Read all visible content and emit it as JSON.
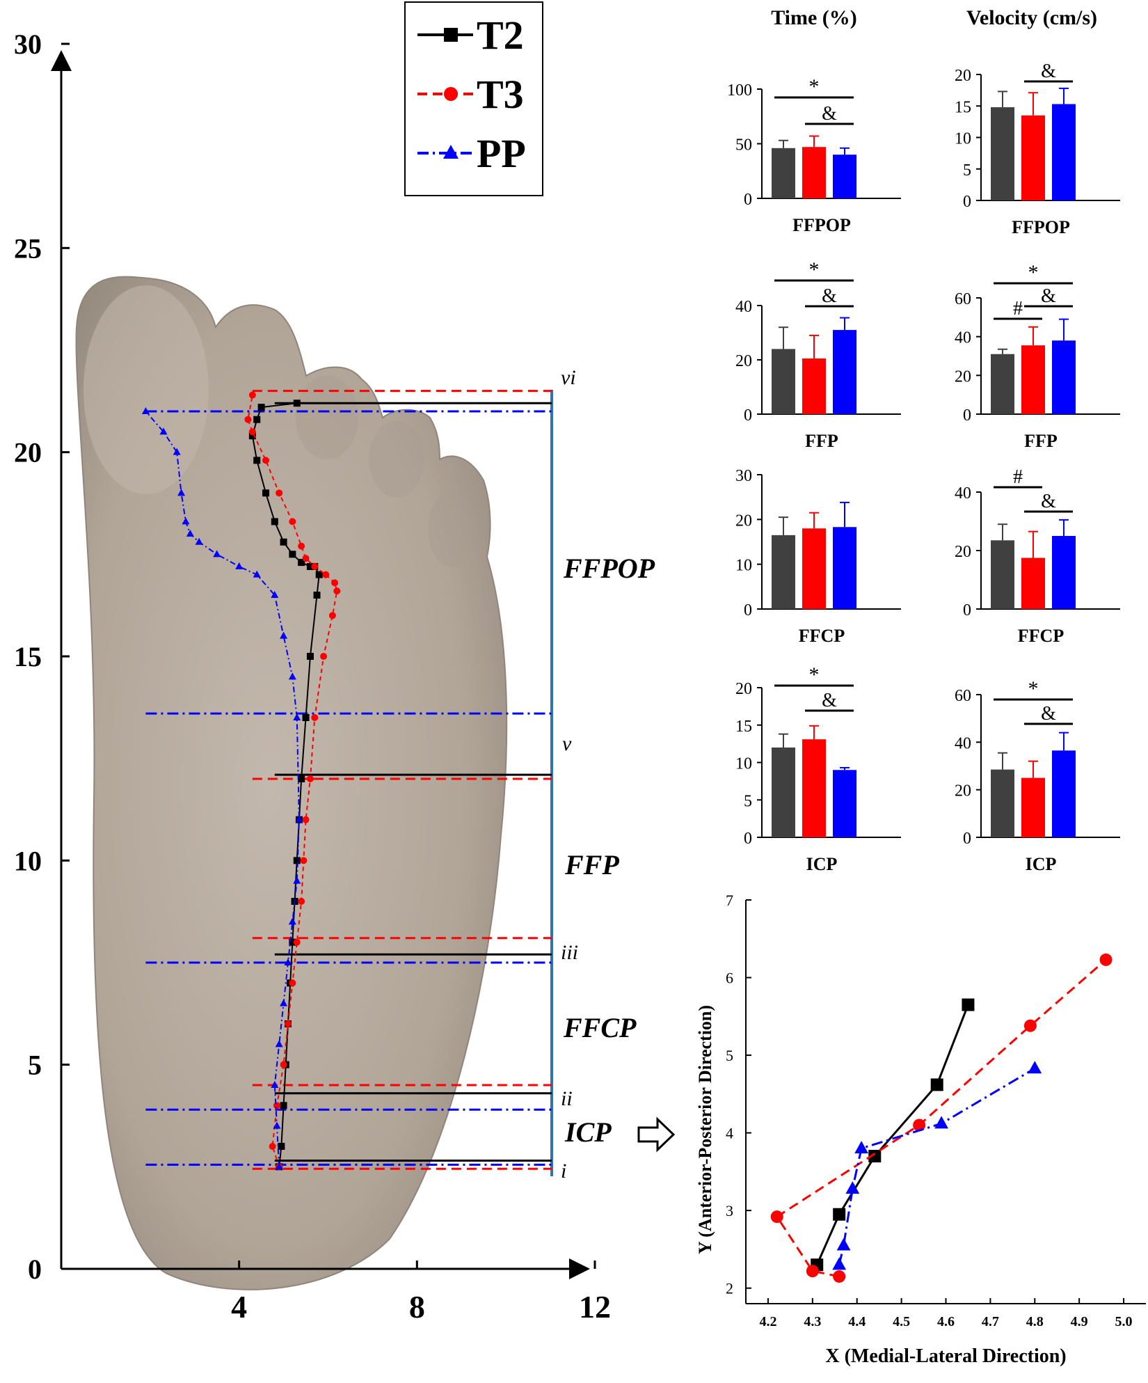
{
  "colors": {
    "T2": "#000000",
    "T3": "#ff0000",
    "PP": "#0000ff",
    "T2_bar": "#404040",
    "T3_bar": "#ff0000",
    "PP_bar": "#0000ff",
    "foot": "#b6aa9e",
    "frame": "#2e75b6"
  },
  "legend": [
    {
      "key": "T2",
      "label": "T2"
    },
    {
      "key": "T3",
      "label": "T3"
    },
    {
      "key": "PP",
      "label": "PP"
    }
  ],
  "headers": {
    "time": "Time (%)",
    "velocity": "Velocity (cm/s)"
  },
  "foot_panel": {
    "y_ticks": [
      "0",
      "5",
      "10",
      "15",
      "20",
      "25",
      "30"
    ],
    "x_ticks": [
      "4",
      "8",
      "12"
    ],
    "phase_labels": [
      "FFPOP",
      "FFP",
      "FFCP",
      "ICP"
    ],
    "roman": [
      "vi",
      "v",
      "iii",
      "ii",
      "i"
    ]
  },
  "chart_data": [
    {
      "type": "line",
      "id": "cop-trajectory",
      "xlim": [
        0,
        12
      ],
      "ylim": [
        0,
        30
      ],
      "series": [
        {
          "name": "T2",
          "x": [
            4.9,
            4.95,
            5.0,
            5.05,
            5.1,
            5.15,
            5.2,
            5.25,
            5.3,
            5.35,
            5.4,
            5.5,
            5.6,
            5.75,
            5.8,
            5.7,
            5.6,
            5.4,
            5.2,
            5.0,
            4.8,
            4.6,
            4.4,
            4.3,
            4.4,
            4.5,
            5.3
          ],
          "y": [
            2.5,
            3.0,
            4.0,
            5.0,
            6.0,
            7.0,
            8.0,
            9.0,
            10.0,
            11.0,
            12.0,
            13.5,
            15.0,
            16.5,
            17.0,
            17.2,
            17.2,
            17.3,
            17.5,
            17.8,
            18.3,
            19.0,
            19.8,
            20.4,
            20.8,
            21.1,
            21.2
          ]
        },
        {
          "name": "T3",
          "x": [
            4.9,
            4.75,
            4.85,
            5.0,
            5.1,
            5.2,
            5.3,
            5.4,
            5.45,
            5.5,
            5.6,
            5.7,
            5.9,
            6.1,
            6.2,
            6.15,
            5.95,
            5.7,
            5.5,
            5.4,
            5.2,
            4.9,
            4.6,
            4.3,
            4.2,
            4.3
          ],
          "y": [
            2.5,
            3.0,
            4.0,
            5.0,
            6.0,
            7.0,
            8.0,
            9.0,
            10.0,
            11.0,
            12.0,
            13.5,
            15.0,
            16.0,
            16.6,
            16.8,
            17.0,
            17.2,
            17.4,
            17.7,
            18.3,
            19.0,
            19.8,
            20.5,
            20.8,
            21.4
          ]
        },
        {
          "name": "PP",
          "x": [
            4.9,
            4.85,
            4.8,
            4.9,
            5.0,
            5.1,
            5.2,
            5.3,
            5.35,
            5.3,
            5.2,
            5.0,
            4.8,
            4.4,
            4.0,
            3.5,
            3.1,
            2.9,
            2.8,
            2.7,
            2.6,
            2.3,
            1.9
          ],
          "y": [
            2.5,
            3.5,
            4.5,
            5.5,
            6.5,
            7.5,
            8.5,
            9.5,
            11.0,
            13.5,
            14.5,
            15.5,
            16.5,
            17.0,
            17.2,
            17.5,
            17.8,
            18.0,
            18.3,
            19.0,
            20.0,
            20.5,
            21.0
          ]
        }
      ],
      "phase_lines": [
        {
          "series": "T3",
          "y": 21.5
        },
        {
          "series": "PP",
          "y": 21.0
        },
        {
          "series": "T2",
          "y": 21.2
        },
        {
          "series": "PP",
          "y": 13.6
        },
        {
          "series": "T2",
          "y": 12.1
        },
        {
          "series": "T3",
          "y": 12.0
        },
        {
          "series": "T3",
          "y": 8.1
        },
        {
          "series": "T2",
          "y": 7.7
        },
        {
          "series": "PP",
          "y": 7.5
        },
        {
          "series": "T3",
          "y": 4.5
        },
        {
          "series": "T2",
          "y": 4.3
        },
        {
          "series": "PP",
          "y": 3.9
        },
        {
          "series": "T2",
          "y": 2.65
        },
        {
          "series": "PP",
          "y": 2.55
        },
        {
          "series": "T3",
          "y": 2.45
        }
      ]
    },
    {
      "type": "bar",
      "id": "time-ffpop",
      "category": "FFPOP",
      "ylim": [
        0,
        100
      ],
      "yticks": [
        0,
        50,
        100
      ],
      "values": [
        46,
        47,
        40
      ],
      "errors": [
        7,
        10,
        6
      ],
      "sig": [
        "*",
        "&"
      ]
    },
    {
      "type": "bar",
      "id": "vel-ffpop",
      "category": "FFPOP",
      "ylim": [
        0,
        20
      ],
      "yticks": [
        0,
        5,
        10,
        15,
        20
      ],
      "values": [
        14.8,
        13.5,
        15.3
      ],
      "errors": [
        2.5,
        3.6,
        2.5
      ],
      "sig": [
        "&"
      ]
    },
    {
      "type": "bar",
      "id": "time-ffp",
      "category": "FFP",
      "ylim": [
        0,
        40
      ],
      "yticks": [
        0,
        20,
        40
      ],
      "values": [
        24,
        20.5,
        31
      ],
      "errors": [
        8,
        8.5,
        4.5
      ],
      "sig": [
        "*",
        "&"
      ]
    },
    {
      "type": "bar",
      "id": "vel-ffp",
      "category": "FFP",
      "ylim": [
        0,
        60
      ],
      "yticks": [
        0,
        20,
        40,
        60
      ],
      "values": [
        31,
        35.5,
        38
      ],
      "errors": [
        2.5,
        9.5,
        11
      ],
      "sig": [
        "*",
        "#",
        "&"
      ]
    },
    {
      "type": "bar",
      "id": "time-ffcp",
      "category": "FFCP",
      "ylim": [
        0,
        30
      ],
      "yticks": [
        0,
        10,
        20,
        30
      ],
      "values": [
        16.5,
        18,
        18.3
      ],
      "errors": [
        4,
        3.5,
        5.5
      ],
      "sig": []
    },
    {
      "type": "bar",
      "id": "vel-ffcp",
      "category": "FFCP",
      "ylim": [
        0,
        40
      ],
      "yticks": [
        0,
        20,
        40
      ],
      "values": [
        23.5,
        17.5,
        25
      ],
      "errors": [
        5.5,
        9,
        5.5
      ],
      "sig": [
        "#",
        "&"
      ]
    },
    {
      "type": "bar",
      "id": "time-icp",
      "category": "ICP",
      "ylim": [
        0,
        20
      ],
      "yticks": [
        0,
        5,
        10,
        15,
        20
      ],
      "values": [
        12,
        13.1,
        9
      ],
      "errors": [
        1.8,
        1.8,
        0.3
      ],
      "sig": [
        "*",
        "&"
      ]
    },
    {
      "type": "bar",
      "id": "vel-icp",
      "category": "ICP",
      "ylim": [
        0,
        60
      ],
      "yticks": [
        0,
        20,
        40,
        60
      ],
      "values": [
        28.5,
        25,
        36.5
      ],
      "errors": [
        7,
        7,
        7.5
      ],
      "sig": [
        "*",
        "&"
      ]
    },
    {
      "type": "line",
      "id": "icp-detail",
      "xlabel": "X (Medial-Lateral Direction)",
      "ylabel": "Y (Anterior-Posterior Direction)",
      "xlim": [
        4.15,
        5.05
      ],
      "ylim": [
        1.8,
        7.0
      ],
      "xticks": [
        "4.2",
        "4.3",
        "4.4",
        "4.5",
        "4.6",
        "4.7",
        "4.8",
        "4.9",
        "5.0"
      ],
      "yticks": [
        "2",
        "3",
        "4",
        "5",
        "6",
        "7"
      ],
      "series": [
        {
          "name": "T2",
          "x": [
            4.31,
            4.36,
            4.44,
            4.58,
            4.65
          ],
          "y": [
            2.3,
            2.95,
            3.7,
            4.62,
            5.65
          ]
        },
        {
          "name": "T3",
          "x": [
            4.36,
            4.3,
            4.22,
            4.54,
            4.79,
            4.96
          ],
          "y": [
            2.15,
            2.22,
            2.92,
            4.1,
            5.38,
            6.23
          ]
        },
        {
          "name": "PP",
          "x": [
            4.36,
            4.37,
            4.39,
            4.41,
            4.59,
            4.8
          ],
          "y": [
            2.3,
            2.55,
            3.28,
            3.8,
            4.12,
            4.83
          ]
        }
      ]
    }
  ]
}
